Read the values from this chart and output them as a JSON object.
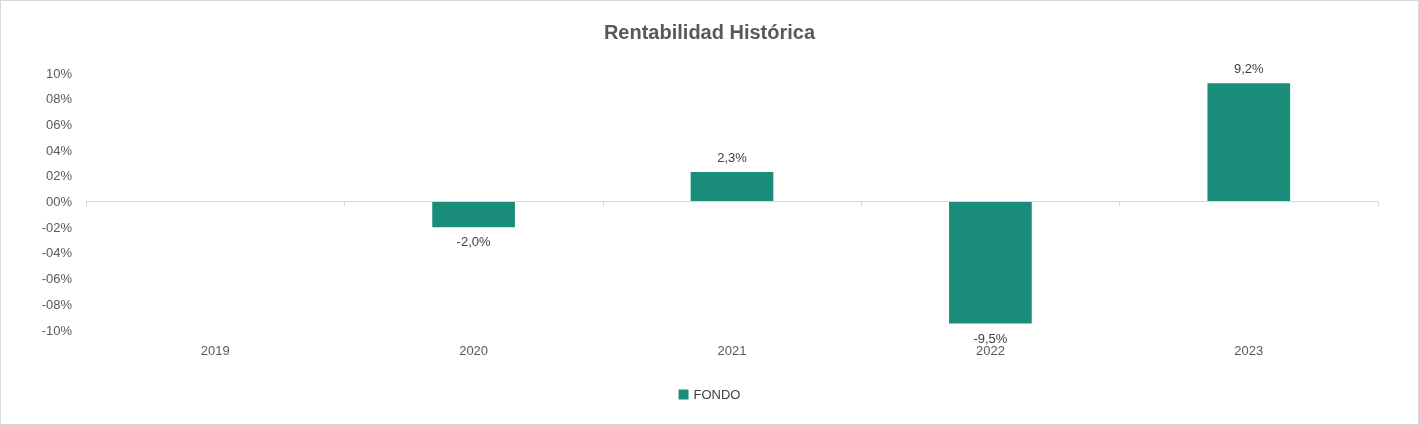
{
  "chart_data": {
    "type": "bar",
    "title": "Rentabilidad Histórica",
    "categories": [
      "2019",
      "2020",
      "2021",
      "2022",
      "2023"
    ],
    "series": [
      {
        "name": "FONDO",
        "color": "#198c7a",
        "values": [
          null,
          -2.0,
          2.3,
          -9.5,
          9.2
        ],
        "value_labels": [
          null,
          "-2,0%",
          "2,3%",
          "-9,5%",
          "9,2%"
        ]
      }
    ],
    "ylim": [
      -10,
      10
    ],
    "yticks": [
      {
        "value": -10,
        "label": "-10%"
      },
      {
        "value": -8,
        "label": "-08%"
      },
      {
        "value": -6,
        "label": "-06%"
      },
      {
        "value": -4,
        "label": "-04%"
      },
      {
        "value": -2,
        "label": "-02%"
      },
      {
        "value": 0,
        "label": "00%"
      },
      {
        "value": 2,
        "label": "02%"
      },
      {
        "value": 4,
        "label": "04%"
      },
      {
        "value": 6,
        "label": "06%"
      },
      {
        "value": 8,
        "label": "08%"
      },
      {
        "value": 10,
        "label": "10%"
      }
    ],
    "ref_lines": [
      {
        "axis": "y",
        "value": 0,
        "label": null,
        "color": "#d9d9d9"
      }
    ],
    "grid": false,
    "legend": "bottom"
  }
}
